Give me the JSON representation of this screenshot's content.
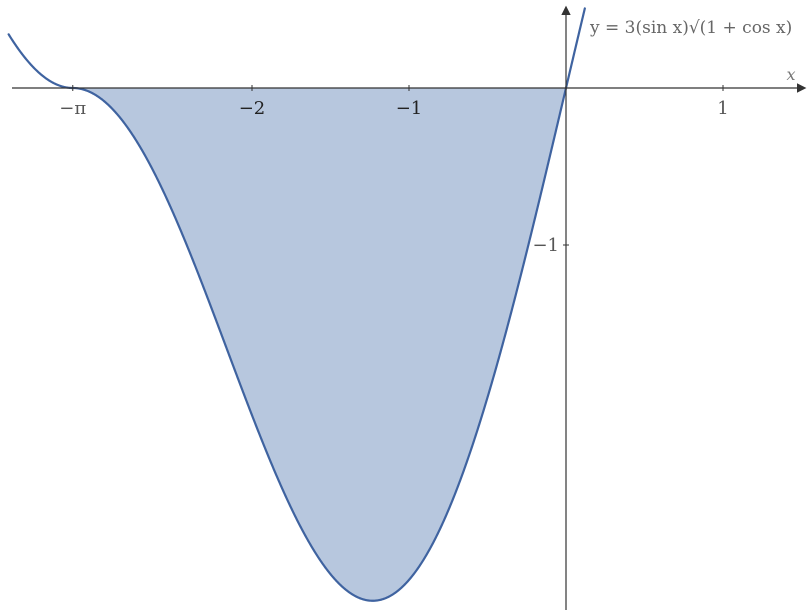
{
  "chart_data": {
    "type": "area",
    "function_label": "y = 3(sin x)√(1 + cos x)",
    "xlabel": "x",
    "ylabel": "",
    "xlim": [
      -3.55,
      1.55
    ],
    "ylim": [
      -3.35,
      0.55
    ],
    "x_ticks": [
      {
        "value": -3.14159,
        "label": "−π"
      },
      {
        "value": -2,
        "label": "−2"
      },
      {
        "value": -1,
        "label": "−1"
      },
      {
        "value": 1,
        "label": "1"
      }
    ],
    "y_ticks": [
      {
        "value": -1,
        "label": "−1"
      }
    ],
    "shaded_region": {
      "from": -3.14159,
      "to": 0
    },
    "series": [
      {
        "x": [
          -3.55,
          -3.4,
          -3.3,
          -3.2,
          -3.14159,
          -3.0,
          -2.8,
          -2.6,
          -2.4,
          -2.2,
          -2.0,
          -1.8,
          -1.6,
          -1.4,
          -1.2,
          -1.0,
          -0.8,
          -0.6,
          -0.4,
          -0.2,
          0,
          0.1
        ],
        "values": [
          0.34,
          0.14,
          0.07,
          0.02,
          0,
          -0.03,
          -0.17,
          -0.42,
          -0.78,
          -1.24,
          -1.73,
          -2.23,
          -2.68,
          -3.04,
          -3.28,
          -3.15,
          -2.8,
          -2.31,
          -1.7,
          -0.84,
          0,
          0.42
        ]
      }
    ],
    "colors": {
      "curve": "#3f63a0",
      "fill": "#b7c7de",
      "axis": "#333333",
      "tick_text_dark": "#111111",
      "tick_text_muted": "#555555"
    },
    "grid": false
  }
}
